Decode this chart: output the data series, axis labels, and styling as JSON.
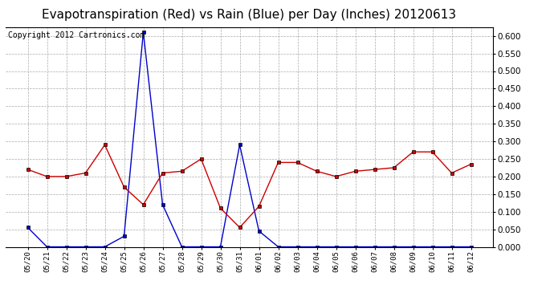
{
  "title": "Evapotranspiration (Red) vs Rain (Blue) per Day (Inches) 20120613",
  "copyright_text": "Copyright 2012 Cartronics.com",
  "x_labels": [
    "05/20",
    "05/21",
    "05/22",
    "05/23",
    "05/24",
    "05/25",
    "05/26",
    "05/27",
    "05/28",
    "05/29",
    "05/30",
    "05/31",
    "06/01",
    "06/02",
    "06/03",
    "06/04",
    "06/05",
    "06/06",
    "06/07",
    "06/08",
    "06/09",
    "06/10",
    "06/11",
    "06/12"
  ],
  "red_data": [
    0.22,
    0.2,
    0.2,
    0.21,
    0.29,
    0.17,
    0.12,
    0.21,
    0.215,
    0.25,
    0.11,
    0.055,
    0.115,
    0.24,
    0.24,
    0.215,
    0.2,
    0.215,
    0.22,
    0.225,
    0.27,
    0.27,
    0.21,
    0.235
  ],
  "blue_data": [
    0.055,
    0.0,
    0.0,
    0.0,
    0.0,
    0.03,
    0.61,
    0.12,
    0.0,
    0.0,
    0.0,
    0.29,
    0.045,
    0.0,
    0.0,
    0.0,
    0.0,
    0.0,
    0.0,
    0.0,
    0.0,
    0.0,
    0.0,
    0.0
  ],
  "red_color": "#cc0000",
  "blue_color": "#0000cc",
  "background_color": "#ffffff",
  "grid_color": "#aaaaaa",
  "ylim": [
    0.0,
    0.625
  ],
  "yticks": [
    0.0,
    0.05,
    0.1,
    0.15,
    0.2,
    0.25,
    0.3,
    0.35,
    0.4,
    0.45,
    0.5,
    0.55,
    0.6
  ],
  "title_fontsize": 11,
  "copyright_fontsize": 7
}
